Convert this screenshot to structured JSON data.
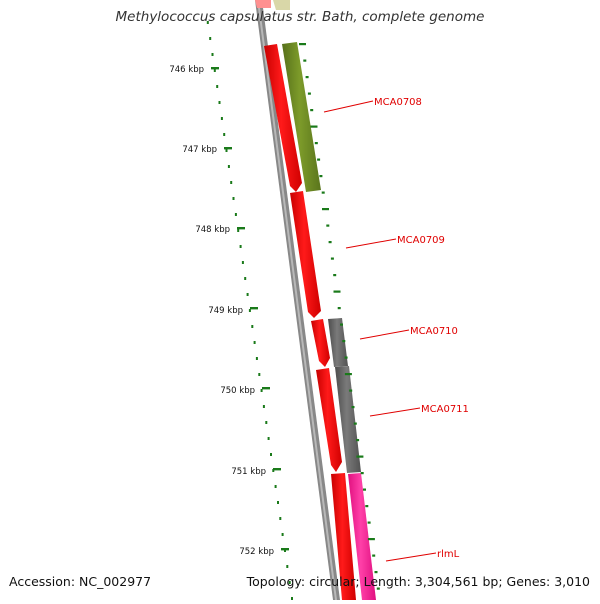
{
  "title": "Methylococcus capsulatus str. Bath, complete genome",
  "footer": {
    "accession": "Accession: NC_002977",
    "summary": "Topology: circular; Length: 3,304,561 bp; Genes: 3,010"
  },
  "map": {
    "tick_labels": [
      "746 kbp",
      "747 kbp",
      "748 kbp",
      "749 kbp",
      "750 kbp",
      "751 kbp",
      "752 kbp"
    ],
    "gene_labels": [
      "MCA0708",
      "MCA0709",
      "MCA0710",
      "MCA0711",
      "rlmL"
    ],
    "colors": {
      "cds_forward": "#ff0000",
      "mca0708_track": "#6f8d1e",
      "mca0710_track": "#666666",
      "rlml_track": "#ff1493",
      "label": "#e00000",
      "tick": "#1a7a1a",
      "backbone": "#8a8a8a"
    }
  }
}
